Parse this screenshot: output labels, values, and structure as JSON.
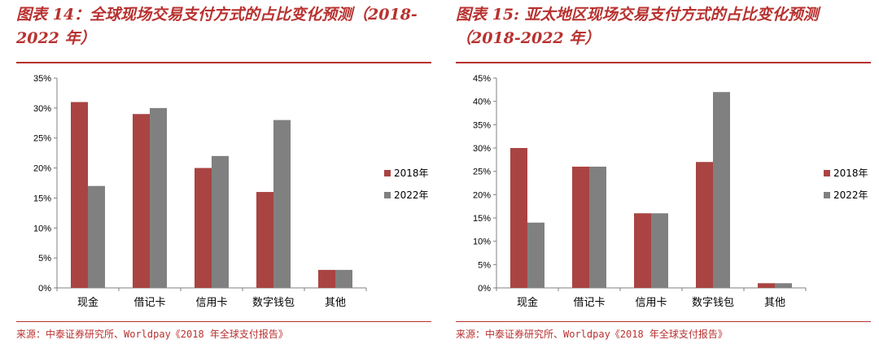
{
  "chart_data": [
    {
      "type": "bar",
      "title": "图表 14：全球现场交易支付方式的占比变化预测（2018-2022 年）",
      "source": "来源：中泰证券研究所、Worldpay《2018 年全球支付报告》",
      "categories": [
        "现金",
        "借记卡",
        "信用卡",
        "数字钱包",
        "其他"
      ],
      "series": [
        {
          "name": "2018年",
          "values": [
            31,
            29,
            20,
            16,
            3
          ],
          "color": "#a94442"
        },
        {
          "name": "2022年",
          "values": [
            17,
            30,
            22,
            28,
            3
          ],
          "color": "#808080"
        }
      ],
      "yticks": [
        "0%",
        "5%",
        "10%",
        "15%",
        "20%",
        "25%",
        "30%",
        "35%"
      ],
      "ylim": [
        0,
        35
      ],
      "xlabel": "",
      "ylabel": "",
      "legend": "right",
      "grid": false
    },
    {
      "type": "bar",
      "title": "图表 15: 亚太地区现场交易支付方式的占比变化预测（2018-2022 年）",
      "source": "来源：中泰证券研究所、Worldpay《2018 年全球支付报告》",
      "categories": [
        "现金",
        "借记卡",
        "信用卡",
        "数字钱包",
        "其他"
      ],
      "series": [
        {
          "name": "2018年",
          "values": [
            30,
            26,
            16,
            27,
            1
          ],
          "color": "#a94442"
        },
        {
          "name": "2022年",
          "values": [
            14,
            26,
            16,
            42,
            1
          ],
          "color": "#808080"
        }
      ],
      "yticks": [
        "0%",
        "5%",
        "10%",
        "15%",
        "20%",
        "25%",
        "30%",
        "35%",
        "40%",
        "45%"
      ],
      "ylim": [
        0,
        45
      ],
      "xlabel": "",
      "ylabel": "",
      "legend": "right",
      "grid": false
    }
  ]
}
